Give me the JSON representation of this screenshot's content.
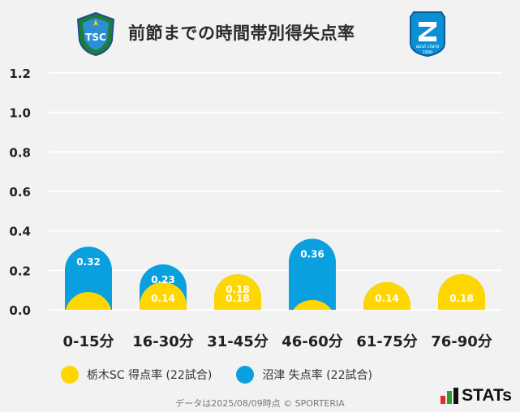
{
  "header": {
    "title": "前節までの時間帯別得失点率",
    "left_logo_text": "TSC",
    "right_logo_text": "azul claro",
    "right_logo_year": "1990"
  },
  "chart_data": {
    "type": "bar",
    "categories": [
      "0-15分",
      "16-30分",
      "31-45分",
      "46-60分",
      "61-75分",
      "76-90分"
    ],
    "series": [
      {
        "name": "栃木SC 得点率 (22試合)",
        "color": "#ffd700",
        "values": [
          0.09,
          0.14,
          0.18,
          0.05,
          0.14,
          0.18
        ],
        "labels": [
          "",
          "0.14",
          "0.18",
          "",
          "0.14",
          "0.18"
        ]
      },
      {
        "name": "沼津 失点率 (22試合)",
        "color": "#0aa0df",
        "values": [
          0.32,
          0.23,
          0.18,
          0.36,
          0.14,
          0.18
        ],
        "labels": [
          "0.32",
          "0.23",
          "0.18",
          "0.36",
          "",
          ""
        ]
      }
    ],
    "ylim": [
      0,
      1.2
    ],
    "yticks": [
      "0.0",
      "0.2",
      "0.4",
      "0.6",
      "0.8",
      "1.0",
      "1.2"
    ],
    "grid": true,
    "legend_position": "bottom"
  },
  "footer": {
    "note": "データは2025/08/09時点 © SPORTERIA",
    "brand": "STATs"
  }
}
